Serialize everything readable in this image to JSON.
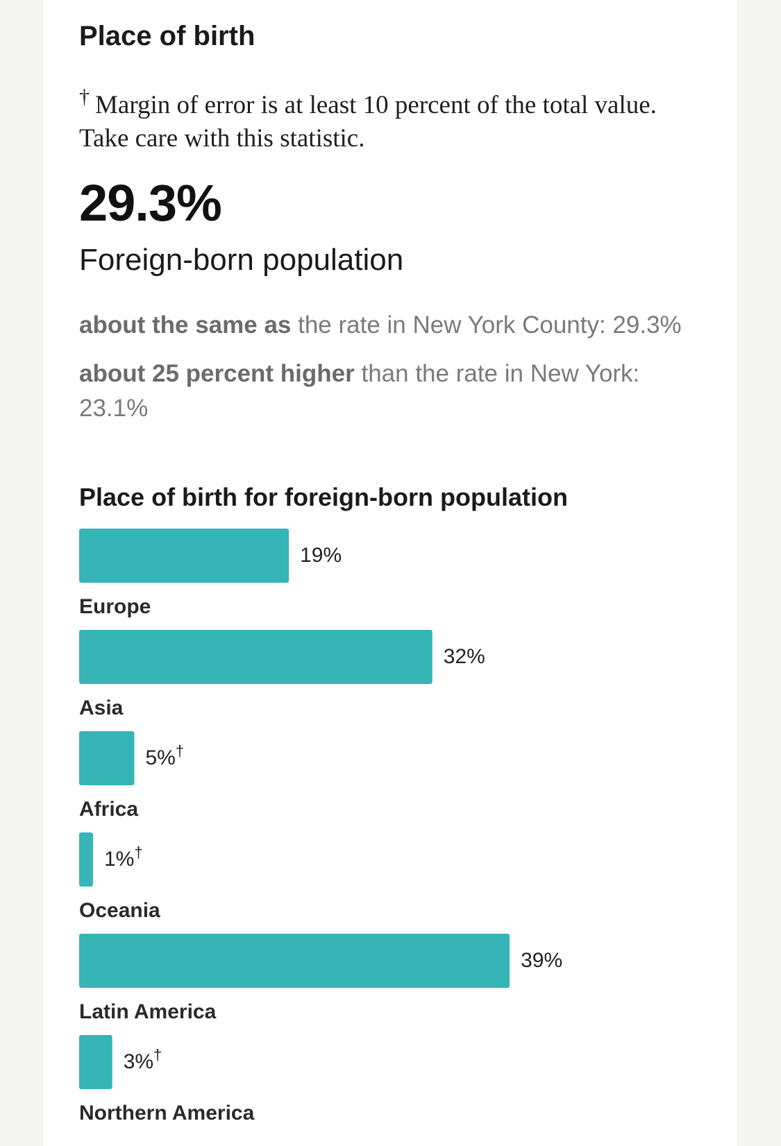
{
  "section": {
    "title": "Place of birth",
    "note_symbol": "†",
    "note_text": "Margin of error is at least 10 percent of the total value. Take care with this statistic."
  },
  "headline": {
    "value": "29.3%",
    "label": "Foreign-born population"
  },
  "comparisons": [
    {
      "emphasis": "about the same as",
      "text": " the rate in New York County: 29.3%"
    },
    {
      "emphasis": "about 25 percent higher",
      "text": " than the rate in New York: 23.1%"
    }
  ],
  "chart_data": {
    "type": "bar",
    "orientation": "horizontal",
    "title": "Place of birth for foreign-born population",
    "categories": [
      "Europe",
      "Asia",
      "Africa",
      "Oceania",
      "Latin America",
      "Northern America"
    ],
    "values": [
      19,
      32,
      5,
      1,
      39,
      3
    ],
    "value_labels": [
      "19%",
      "32%",
      "5%",
      "1%",
      "39%",
      "3%"
    ],
    "margin_flag": [
      false,
      false,
      true,
      true,
      false,
      true
    ],
    "flag_symbol": "†",
    "bar_color": "#35b5b6",
    "xlim": [
      0,
      50
    ],
    "grid": false,
    "legend": "none"
  }
}
